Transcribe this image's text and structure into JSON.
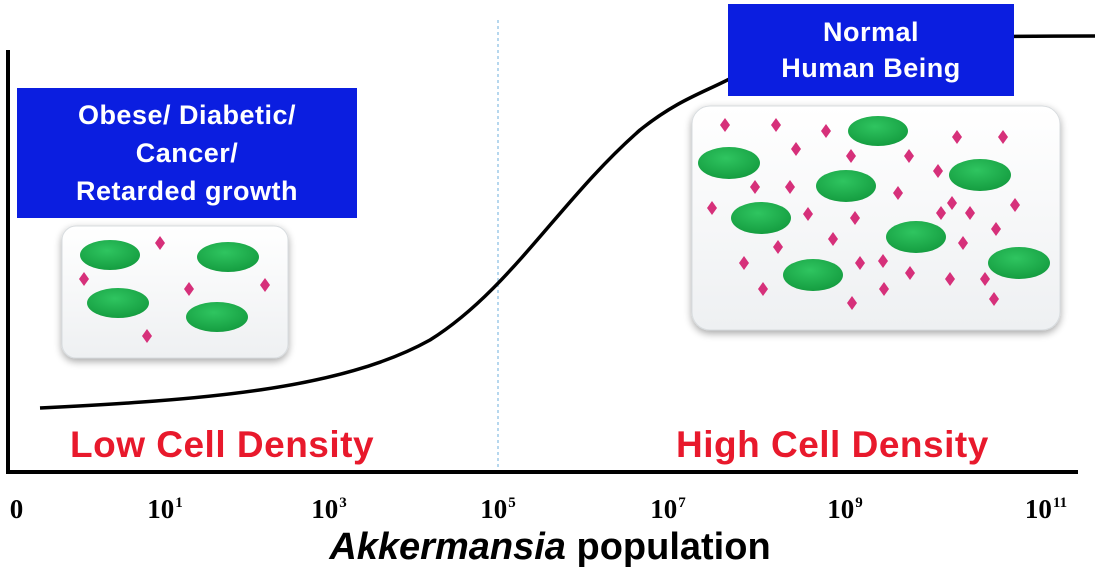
{
  "labels": {
    "left_condition_lines": [
      "Obese/ Diabetic/",
      "Cancer/",
      "Retarded growth"
    ],
    "right_condition_lines": [
      "Normal",
      "Human Being"
    ],
    "low_density": "Low Cell Density",
    "high_density": "High Cell Density"
  },
  "x_axis": {
    "ticks": [
      {
        "base": "0",
        "exp": ""
      },
      {
        "base": "10",
        "exp": "1"
      },
      {
        "base": "10",
        "exp": "3"
      },
      {
        "base": "10",
        "exp": "5"
      },
      {
        "base": "10",
        "exp": "7"
      },
      {
        "base": "10",
        "exp": "9"
      },
      {
        "base": "10",
        "exp": "11"
      }
    ],
    "title_italic": "Akkermansia",
    "title_rest": " population"
  },
  "colors": {
    "label_box": "#0b1ee0",
    "density_text": "#e8192c",
    "cell_green": "#1aaa4a",
    "dot_magenta": "#d6307a",
    "curve": "#000000",
    "divider": "#9ecae8"
  }
}
